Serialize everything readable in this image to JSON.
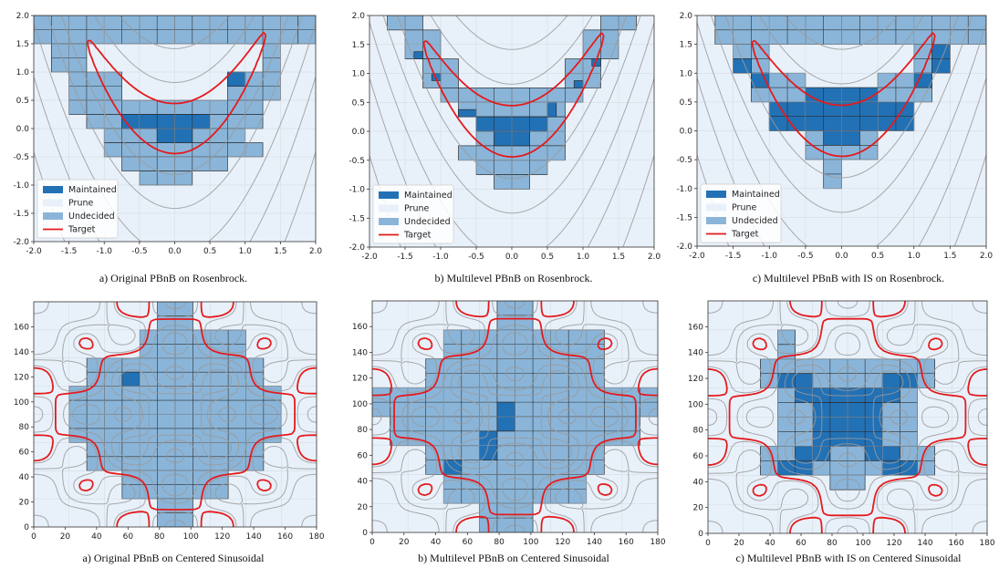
{
  "legend": {
    "maintained": "Maintained",
    "prune": "Prune",
    "undecided": "Undecided",
    "target": "Target"
  },
  "colors": {
    "maintained": "#2271b5",
    "prune": "#e8f1fa",
    "undecided": "#8ab5d9",
    "target": "#e41a1c",
    "contour": "#9a9a9a",
    "grid_line": "#2d2d2d"
  },
  "chart_data": [
    {
      "id": "rb_original",
      "type": "heatmap",
      "function": "rosenbrock",
      "caption": "a) Original PBnB on Rosenbrock.",
      "xlim": [
        -2.0,
        2.0
      ],
      "ylim": [
        -2.0,
        2.0
      ],
      "xticks": [
        "-2.0",
        "-1.5",
        "-1.0",
        "-0.5",
        "0.0",
        "0.5",
        "1.0",
        "1.5",
        "2.0"
      ],
      "yticks": [
        "-2.0",
        "-1.5",
        "-1.0",
        "-0.5",
        "0.0",
        "0.5",
        "1.0",
        "1.5",
        "2.0"
      ],
      "legend_position": "lower-left",
      "cell": 0.25,
      "undecided": [
        [
          -2.0,
          1.5,
          2.0,
          2.0
        ],
        [
          1.0,
          1.5,
          1.75,
          2.0
        ],
        [
          -1.75,
          1.0,
          -1.25,
          1.5
        ],
        [
          1.25,
          1.0,
          1.5,
          1.5
        ],
        [
          -1.5,
          0.5,
          -0.75,
          1.0
        ],
        [
          0.75,
          0.5,
          1.5,
          1.0
        ],
        [
          -1.5,
          0.25,
          1.25,
          0.5
        ],
        [
          -1.25,
          0.0,
          1.25,
          0.25
        ],
        [
          -1.0,
          -0.25,
          1.0,
          0.0
        ],
        [
          -1.0,
          -0.5,
          1.25,
          -0.25
        ],
        [
          -0.75,
          -0.75,
          0.75,
          -0.5
        ],
        [
          -0.5,
          -1.0,
          0.25,
          -0.75
        ]
      ],
      "maintained": [
        [
          -0.75,
          0.0,
          0.5,
          0.25
        ],
        [
          -0.25,
          -0.25,
          0.25,
          0.0
        ],
        [
          0.75,
          0.75,
          1.0,
          1.0
        ]
      ],
      "target_levels": [
        0.6
      ],
      "contour_levels": [
        2,
        6,
        15,
        30,
        60,
        120,
        250
      ]
    },
    {
      "id": "rb_multilevel",
      "type": "heatmap",
      "function": "rosenbrock",
      "caption": "b) Multilevel PBnB on Rosenbrock.",
      "xlim": [
        -2.0,
        2.0
      ],
      "ylim": [
        -2.0,
        2.0
      ],
      "xticks": [
        "-2.0",
        "-1.5",
        "-1.0",
        "-0.5",
        "0.0",
        "0.5",
        "1.0",
        "1.5",
        "2.0"
      ],
      "yticks": [
        "-2.0",
        "-1.5",
        "-1.0",
        "-0.5",
        "0.0",
        "0.5",
        "1.0",
        "1.5",
        "2.0"
      ],
      "legend_position": "lower-left",
      "cell": 0.25,
      "undecided": [
        [
          -1.75,
          1.75,
          -1.25,
          2.0
        ],
        [
          1.25,
          1.75,
          1.75,
          2.0
        ],
        [
          -1.5,
          1.25,
          -1.0,
          1.75
        ],
        [
          1.0,
          1.25,
          1.5,
          1.75
        ],
        [
          -1.25,
          0.75,
          -0.75,
          1.25
        ],
        [
          0.75,
          0.75,
          1.25,
          1.25
        ],
        [
          -1.0,
          0.5,
          1.0,
          0.75
        ],
        [
          -0.75,
          0.25,
          0.75,
          0.5
        ],
        [
          -0.5,
          -0.25,
          0.75,
          0.25
        ],
        [
          -0.75,
          -0.5,
          0.75,
          -0.25
        ],
        [
          -0.5,
          -0.75,
          0.5,
          -0.5
        ],
        [
          -0.25,
          -1.0,
          0.25,
          -0.75
        ]
      ],
      "maintained": [
        [
          -1.375,
          1.25,
          -1.25,
          1.375
        ],
        [
          -1.125,
          0.875,
          -1.0,
          1.0
        ],
        [
          1.125,
          1.125,
          1.25,
          1.25
        ],
        [
          0.875,
          0.75,
          1.0,
          0.875
        ],
        [
          -0.75,
          0.25,
          -0.5,
          0.375
        ],
        [
          0.5,
          0.25,
          0.625,
          0.5
        ],
        [
          -0.5,
          0.0,
          0.5,
          0.25
        ],
        [
          -0.25,
          -0.25,
          0.25,
          0.0
        ]
      ],
      "target_levels": [
        0.6
      ],
      "contour_levels": [
        2,
        6,
        15,
        30,
        60,
        120,
        250
      ]
    },
    {
      "id": "rb_multilevel_is",
      "type": "heatmap",
      "function": "rosenbrock",
      "caption": "c) Multilevel PBnB with IS on Rosenbrock.",
      "xlim": [
        -2.0,
        2.0
      ],
      "ylim": [
        -2.0,
        2.0
      ],
      "xticks": [
        "-2.0",
        "-1.5",
        "-1.0",
        "-0.5",
        "0.0",
        "0.5",
        "1.0",
        "1.5",
        "2.0"
      ],
      "yticks": [
        "-2.0",
        "-1.5",
        "-1.0",
        "-0.5",
        "0.0",
        "0.5",
        "1.0",
        "1.5",
        "2.0"
      ],
      "legend_position": "lower-left",
      "cell": 0.25,
      "undecided": [
        [
          -1.75,
          1.5,
          2.0,
          2.0
        ],
        [
          -1.5,
          1.0,
          -1.0,
          1.5
        ],
        [
          1.0,
          1.0,
          1.5,
          1.5
        ],
        [
          -1.25,
          0.5,
          -0.5,
          1.0
        ],
        [
          0.5,
          0.5,
          1.25,
          1.0
        ],
        [
          -1.0,
          0.0,
          1.0,
          0.5
        ],
        [
          -0.5,
          -0.5,
          0.5,
          0.0
        ],
        [
          -0.25,
          -1.0,
          0.0,
          -0.5
        ]
      ],
      "maintained": [
        [
          -1.5,
          1.0,
          -1.25,
          1.25
        ],
        [
          -1.25,
          0.75,
          -1.0,
          1.0
        ],
        [
          1.25,
          1.0,
          1.5,
          1.5
        ],
        [
          1.0,
          0.75,
          1.25,
          1.0
        ],
        [
          -0.5,
          0.5,
          0.5,
          0.75
        ],
        [
          -1.0,
          0.0,
          1.0,
          0.5
        ],
        [
          -0.25,
          -0.25,
          0.25,
          0.0
        ]
      ],
      "target_levels": [
        0.6
      ],
      "contour_levels": [
        2,
        6,
        15,
        30,
        60,
        120,
        250
      ]
    },
    {
      "id": "sin_original",
      "type": "heatmap",
      "function": "centered_sinusoidal",
      "caption": "a) Original PBnB on Centered Sinusoidal",
      "xlim": [
        0,
        180
      ],
      "ylim": [
        0,
        180
      ],
      "xticks": [
        "0",
        "20",
        "40",
        "60",
        "80",
        "100",
        "120",
        "140",
        "160",
        "180"
      ],
      "yticks": [
        "0",
        "20",
        "40",
        "60",
        "80",
        "100",
        "120",
        "140",
        "160"
      ],
      "legend_position": "none",
      "cell": 11.25,
      "undecided": [
        [
          78.75,
          157.5,
          101.25,
          180.0
        ],
        [
          67.5,
          135.0,
          135.0,
          157.5
        ],
        [
          33.75,
          112.5,
          146.25,
          135.0
        ],
        [
          22.5,
          67.5,
          157.5,
          112.5
        ],
        [
          33.75,
          45.0,
          146.25,
          67.5
        ],
        [
          56.25,
          22.5,
          123.75,
          45.0
        ],
        [
          78.75,
          0.0,
          101.25,
          22.5
        ]
      ],
      "maintained": [
        [
          56.25,
          112.5,
          67.5,
          123.75
        ]
      ],
      "target_levels": [
        0.5
      ],
      "contour_levels": [
        0.15,
        0.3,
        0.45,
        0.65,
        0.8,
        0.92
      ]
    },
    {
      "id": "sin_multilevel",
      "type": "heatmap",
      "function": "centered_sinusoidal",
      "caption": "b) Multilevel PBnB on Centered Sinusoidal",
      "xlim": [
        0,
        180
      ],
      "ylim": [
        0,
        180
      ],
      "xticks": [
        "0",
        "20",
        "40",
        "60",
        "80",
        "100",
        "120",
        "140",
        "160",
        "180"
      ],
      "yticks": [
        "0",
        "20",
        "40",
        "60",
        "80",
        "100",
        "120",
        "140",
        "160"
      ],
      "legend_position": "none",
      "cell": 11.25,
      "undecided": [
        [
          78.75,
          157.5,
          101.25,
          180.0
        ],
        [
          45.0,
          135.0,
          146.25,
          157.5
        ],
        [
          33.75,
          112.5,
          146.25,
          135.0
        ],
        [
          0.0,
          90.0,
          180.0,
          112.5
        ],
        [
          11.25,
          67.5,
          168.75,
          90.0
        ],
        [
          33.75,
          45.0,
          146.25,
          67.5
        ],
        [
          45.0,
          22.5,
          135.0,
          45.0
        ],
        [
          67.5,
          0.0,
          101.25,
          22.5
        ]
      ],
      "maintained": [
        [
          78.75,
          78.75,
          90.0,
          101.25
        ],
        [
          67.5,
          56.25,
          78.75,
          78.75
        ],
        [
          45.0,
          45.0,
          56.25,
          56.25
        ]
      ],
      "target_levels": [
        0.5
      ],
      "contour_levels": [
        0.15,
        0.3,
        0.45,
        0.65,
        0.8,
        0.92
      ]
    },
    {
      "id": "sin_multilevel_is",
      "type": "heatmap",
      "function": "centered_sinusoidal",
      "caption": "c) Multilevel PBnB with IS on Centered Sinusoidal",
      "xlim": [
        0,
        180
      ],
      "ylim": [
        0,
        180
      ],
      "xticks": [
        "0",
        "20",
        "40",
        "60",
        "80",
        "100",
        "120",
        "140",
        "160",
        "180"
      ],
      "yticks": [
        "0",
        "20",
        "40",
        "60",
        "80",
        "100",
        "120",
        "140",
        "160"
      ],
      "legend_position": "none",
      "cell": 11.25,
      "undecided": [
        [
          45.0,
          146.25,
          56.25,
          157.5
        ],
        [
          45.0,
          135.0,
          56.25,
          146.25
        ],
        [
          33.75,
          112.5,
          146.25,
          135.0
        ],
        [
          45.0,
          67.5,
          135.0,
          112.5
        ],
        [
          33.75,
          45.0,
          146.25,
          67.5
        ],
        [
          78.75,
          33.75,
          101.25,
          45.0
        ]
      ],
      "maintained": [
        [
          45.0,
          112.5,
          67.5,
          123.75
        ],
        [
          112.5,
          112.5,
          135.0,
          123.75
        ],
        [
          56.25,
          101.25,
          123.75,
          112.5
        ],
        [
          67.5,
          67.5,
          112.5,
          101.25
        ],
        [
          56.25,
          56.25,
          78.75,
          67.5
        ],
        [
          101.25,
          56.25,
          123.75,
          67.5
        ],
        [
          45.0,
          45.0,
          67.5,
          56.25
        ],
        [
          112.5,
          45.0,
          135.0,
          56.25
        ]
      ],
      "target_levels": [
        0.5
      ],
      "contour_levels": [
        0.15,
        0.3,
        0.45,
        0.65,
        0.8,
        0.92
      ]
    }
  ]
}
